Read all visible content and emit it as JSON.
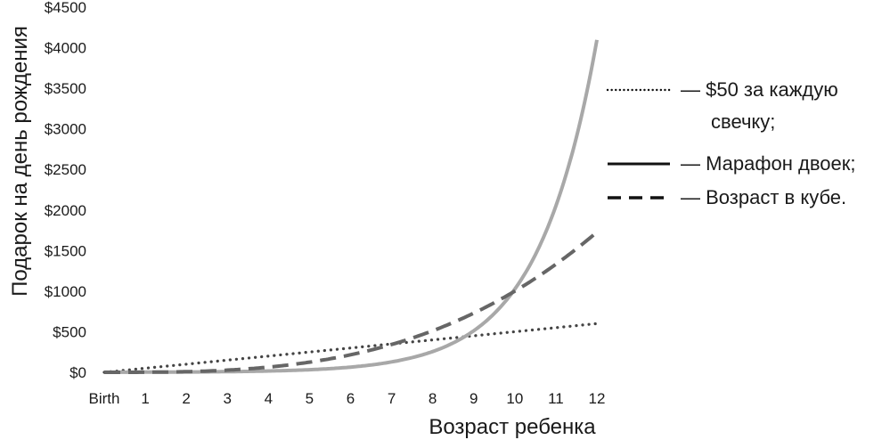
{
  "chart_data": {
    "type": "line",
    "xlabel": "Возраст ребенка",
    "ylabel": "Подарок на день рождения",
    "x_tick_labels": [
      "Birth",
      "1",
      "2",
      "3",
      "4",
      "5",
      "6",
      "7",
      "8",
      "9",
      "10",
      "11",
      "12"
    ],
    "x": [
      0,
      1,
      2,
      3,
      4,
      5,
      6,
      7,
      8,
      9,
      10,
      11,
      12
    ],
    "xlim": [
      0,
      12
    ],
    "ylim": [
      0,
      4500
    ],
    "y_ticks": [
      0,
      500,
      1000,
      1500,
      2000,
      2500,
      3000,
      3500,
      4000,
      4500
    ],
    "y_tick_labels": [
      "$0",
      "$500",
      "$1000",
      "$1500",
      "$2000",
      "$2500",
      "$3000",
      "$3500",
      "$4000",
      "$4500"
    ],
    "grid": false,
    "legend_position": "right",
    "series": [
      {
        "name": "— $50 за каждую свечку;",
        "legend_lines": [
          "— $50 за каждую",
          "свечку;"
        ],
        "legend_style": "dotted",
        "style": "dotted",
        "color": "#444444",
        "values": [
          0,
          50,
          100,
          150,
          200,
          250,
          300,
          350,
          400,
          450,
          500,
          550,
          600
        ]
      },
      {
        "name": "— Марафон двоек;",
        "legend_lines": [
          "— Марафон двоек;"
        ],
        "legend_style": "solid",
        "style": "solid",
        "color": "#a8a8a8",
        "values": [
          1,
          2,
          4,
          8,
          16,
          32,
          64,
          128,
          256,
          512,
          1024,
          2048,
          4096
        ]
      },
      {
        "name": "— Возраст в кубе.",
        "legend_lines": [
          "— Возраст в кубе."
        ],
        "legend_style": "dashed",
        "style": "dashed",
        "color": "#666666",
        "values": [
          0,
          1,
          8,
          27,
          64,
          125,
          216,
          343,
          512,
          729,
          1000,
          1331,
          1728
        ]
      }
    ]
  }
}
